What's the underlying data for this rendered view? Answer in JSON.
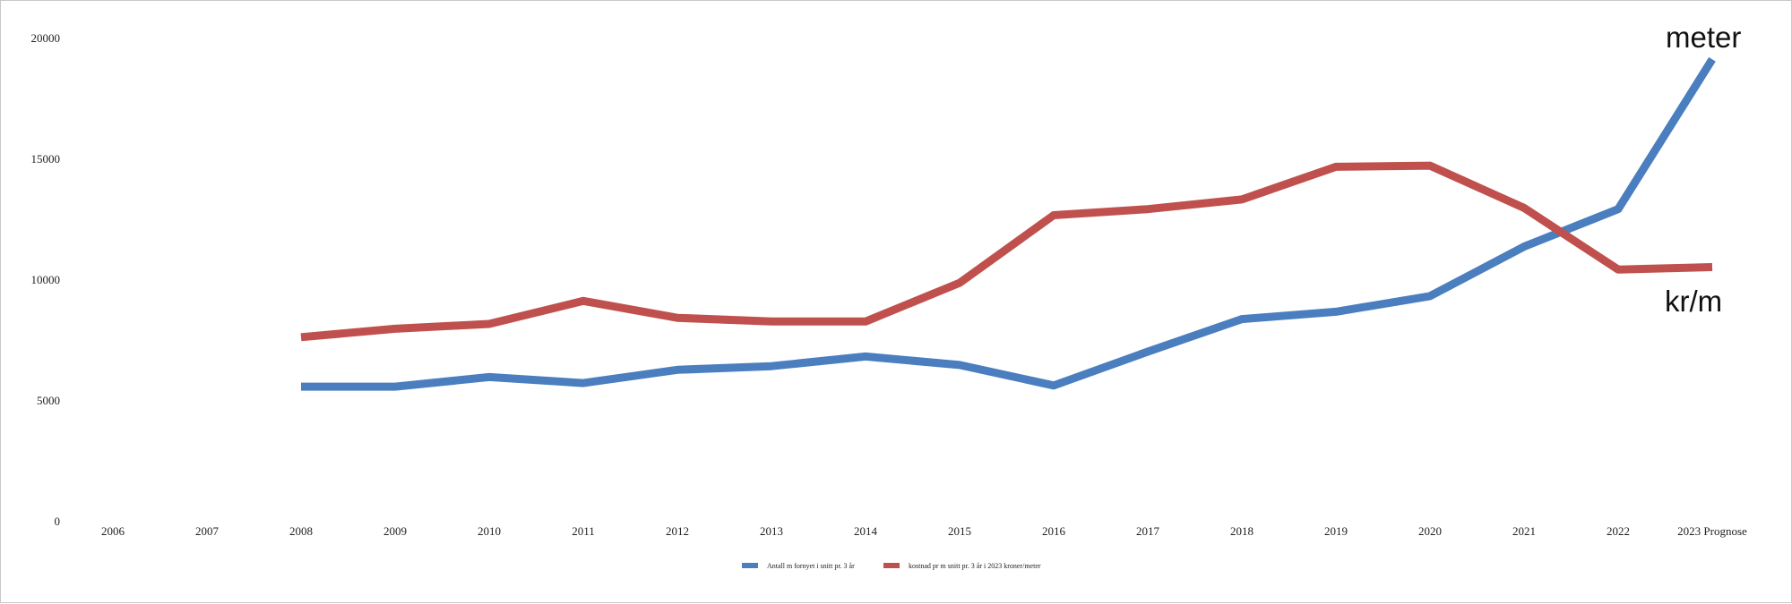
{
  "chart_data": {
    "type": "line",
    "title": "",
    "xlabel": "",
    "ylabel": "",
    "ylim": [
      0,
      20000
    ],
    "yticks": [
      0,
      5000,
      10000,
      15000,
      20000
    ],
    "grid": false,
    "legend_position": "bottom",
    "categories": [
      "2006",
      "2007",
      "2008",
      "2009",
      "2010",
      "2011",
      "2012",
      "2013",
      "2014",
      "2015",
      "2016",
      "2017",
      "2018",
      "2019",
      "2020",
      "2021",
      "2022",
      "2023 Prognose"
    ],
    "series": [
      {
        "name": "Antall m fornyet i snitt pr. 3 år",
        "color": "#4A7EBF",
        "values": [
          null,
          null,
          5550,
          5550,
          5950,
          5700,
          6250,
          6400,
          6800,
          6450,
          5600,
          7000,
          8350,
          8650,
          9300,
          11350,
          12900,
          19100
        ]
      },
      {
        "name": "kostnad pr m  snitt pr. 3 år i 2023 kroner/meter",
        "color": "#C0504D",
        "values": [
          null,
          null,
          7600,
          7950,
          8150,
          9100,
          8400,
          8250,
          8250,
          9850,
          12650,
          12900,
          13300,
          14650,
          14700,
          12950,
          10400,
          10500
        ]
      }
    ],
    "annotations": [
      {
        "text": "meter",
        "series": 0
      },
      {
        "text": "kr/m",
        "series": 1
      }
    ]
  }
}
